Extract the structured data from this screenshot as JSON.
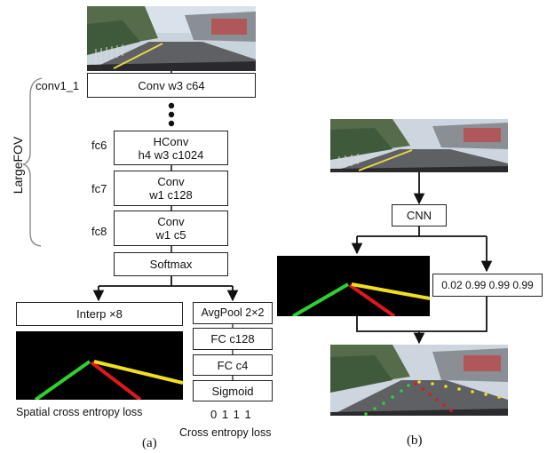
{
  "panel_a": {
    "caption": "(a)",
    "largefov_label": "LargeFOV",
    "layers": [
      {
        "name": "conv1_1",
        "text": "Conv w3 c64"
      },
      {
        "name": "fc6",
        "line1": "HConv",
        "line2": "h4 w3 c1024"
      },
      {
        "name": "fc7",
        "line1": "Conv",
        "line2": "w1 c128"
      },
      {
        "name": "fc8",
        "line1": "Conv",
        "line2": "w1 c5"
      }
    ],
    "softmax": "Softmax",
    "interp": "Interp ×8",
    "avgpool": "AvgPool 2×2",
    "fc_c128": "FC c128",
    "fc_c4": "FC c4",
    "sigmoid": "Sigmoid",
    "existence_output": "0 1 1 1",
    "spatial_loss": "Spatial cross entropy loss",
    "ce_loss": "Cross entropy loss"
  },
  "panel_b": {
    "caption": "(b)",
    "cnn": "CNN",
    "probabilities": "0.02 0.99 0.99 0.99"
  },
  "colors": {
    "lane_green": "#2fd12f",
    "lane_red": "#e01818",
    "lane_yellow": "#f0e020",
    "seg_background": "#000000"
  }
}
